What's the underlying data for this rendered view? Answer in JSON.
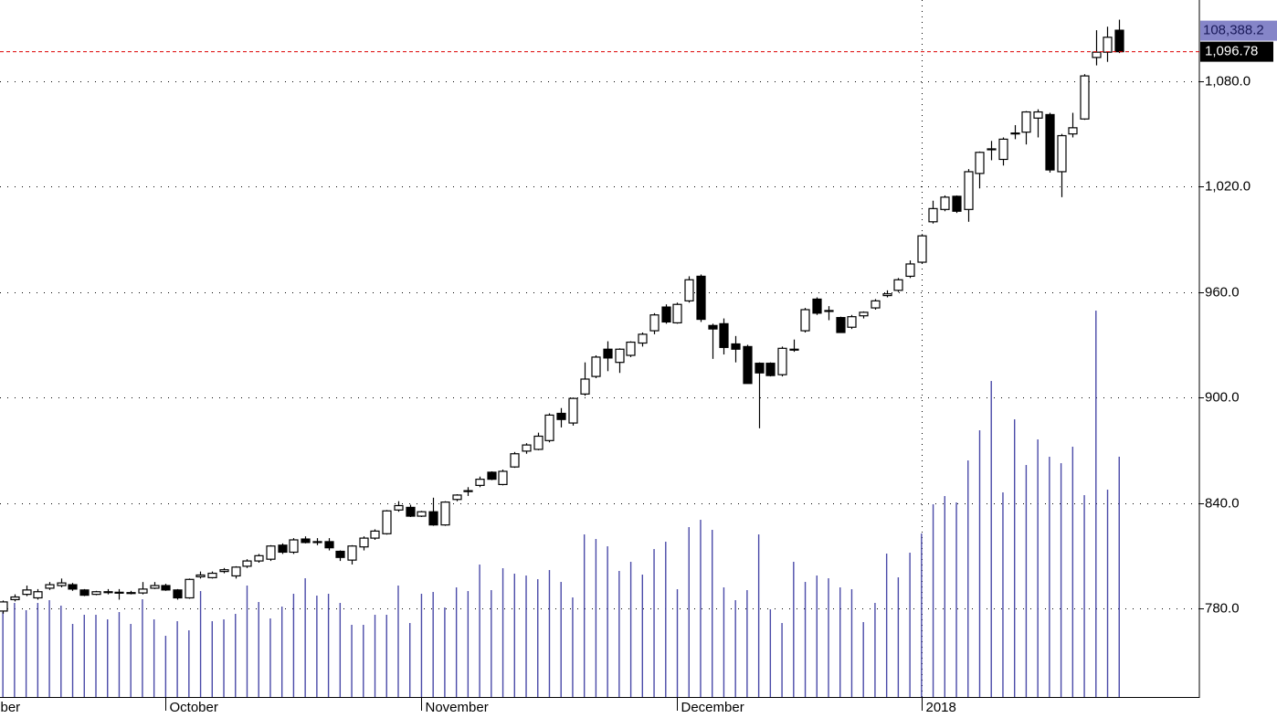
{
  "chart_data": {
    "type": "candlestick",
    "ylim": [
      729.6,
      1126.2
    ],
    "yticks": [
      {
        "value": 780,
        "label": "780.0"
      },
      {
        "value": 840,
        "label": "840.0"
      },
      {
        "value": 900,
        "label": "900.0"
      },
      {
        "value": 960,
        "label": "960.0"
      },
      {
        "value": 1020,
        "label": "1,020.0"
      },
      {
        "value": 1080,
        "label": "1,080.0"
      }
    ],
    "grid": true,
    "xlim": [
      -0.24,
      102.9
    ],
    "xticks": [
      {
        "value": -0.55,
        "label": "ber"
      },
      {
        "value": 14,
        "label": "October"
      },
      {
        "value": 36,
        "label": "November"
      },
      {
        "value": 58,
        "label": "December"
      },
      {
        "value": 79,
        "label": "2018"
      }
    ],
    "open": [
      778.5,
      785,
      788,
      786,
      791.5,
      793,
      793.5,
      790.5,
      788,
      789,
      789,
      788.5,
      788.8,
      791.5,
      793,
      790.5,
      786,
      798,
      797.5,
      801,
      798.5,
      804,
      807,
      808,
      816,
      812,
      819.5,
      818,
      818,
      812.5,
      807.5,
      815,
      820,
      822.5,
      836,
      837.5,
      832.5,
      835,
      827.5,
      842,
      846.5,
      850,
      857.5,
      850.5,
      860.5,
      869.5,
      870.5,
      875.5,
      891,
      885.5,
      902,
      912,
      927.5,
      920,
      924,
      931,
      938,
      951.5,
      942.5,
      955,
      969,
      941,
      942,
      930.5,
      929,
      919.5,
      919.5,
      913,
      927,
      938,
      956,
      949,
      945.5,
      940,
      946.5,
      951,
      958,
      961,
      969,
      977,
      1000,
      1007,
      1014.5,
      1007,
      1027.5,
      1041,
      1035.5,
      1050,
      1051,
      1059,
      1061,
      1028.5,
      1050,
      1058.5,
      1093.5,
      1096.5,
      1109
    ],
    "high": [
      784.5,
      788,
      793,
      791,
      795,
      797,
      794.5,
      791,
      790,
      791,
      791,
      790,
      795,
      795,
      794,
      791,
      797,
      801,
      801,
      803,
      804,
      808,
      811,
      816,
      817,
      820,
      821,
      820,
      820,
      813,
      816,
      821,
      825,
      836,
      841,
      839,
      835.5,
      843,
      841,
      845,
      849,
      855,
      858,
      859,
      869,
      874,
      880,
      891,
      894,
      900,
      920,
      924,
      932,
      928,
      932,
      937,
      948,
      953,
      954,
      969,
      970,
      942,
      945,
      935,
      930,
      920,
      920,
      929,
      933,
      951,
      957,
      952,
      946,
      947,
      949,
      956,
      961,
      968,
      978,
      993,
      1012,
      1015,
      1015,
      1030,
      1040,
      1046,
      1048,
      1055,
      1063,
      1064,
      1062,
      1050,
      1062,
      1084,
      1109,
      1111,
      1115
    ],
    "low": [
      777,
      784,
      787,
      785,
      790.5,
      792,
      790,
      787,
      787.5,
      788,
      785,
      788,
      788,
      791,
      790,
      785,
      785.5,
      797,
      797,
      800,
      797,
      803,
      806,
      807,
      811,
      811,
      817,
      816,
      813,
      807,
      805,
      813,
      819,
      822,
      835,
      832,
      832,
      827,
      827,
      841,
      844,
      849,
      853,
      850,
      860,
      868,
      870,
      874.5,
      883,
      884,
      901,
      911,
      915,
      914,
      923,
      929,
      936,
      942,
      942,
      954,
      943,
      922,
      924.5,
      920,
      908,
      882.5,
      912,
      912,
      926,
      937,
      947,
      944,
      937,
      939,
      945,
      950,
      957,
      960,
      968,
      976,
      999,
      1006,
      1005,
      1000,
      1019,
      1035,
      1032,
      1047,
      1044,
      1048,
      1028,
      1014,
      1048,
      1058,
      1089,
      1091,
      1096
    ],
    "close": [
      783.7,
      786.5,
      790.5,
      789.5,
      793.5,
      794.5,
      791,
      787.5,
      789.5,
      789.5,
      789.2,
      789,
      791,
      793,
      790.5,
      786,
      796.5,
      799,
      800,
      802,
      803.5,
      807,
      810,
      815.5,
      812,
      819,
      817.5,
      817.5,
      814.5,
      809,
      815.5,
      820,
      824,
      835.5,
      838.5,
      832.5,
      835,
      827.5,
      840.5,
      844.5,
      847,
      853.5,
      853.5,
      858,
      868,
      873,
      878,
      890,
      887.5,
      899.5,
      910.5,
      923,
      922.5,
      927.5,
      931.5,
      936,
      947,
      943,
      953,
      967,
      944.5,
      939,
      928.5,
      927.5,
      908,
      914,
      912.5,
      928,
      927.5,
      950,
      948,
      949.5,
      937,
      946,
      948.5,
      955,
      959,
      967,
      976,
      992,
      1007.5,
      1014,
      1006,
      1028.5,
      1039.5,
      1041.5,
      1047,
      1050.5,
      1062.5,
      1062.5,
      1029.5,
      1049,
      1053.5,
      1083,
      1096.5,
      1105,
      1096.78
    ],
    "close_last_label": "1,096.78",
    "up_color": "#ffffff",
    "down_color": "#000000",
    "volume": [
      38316,
      42436,
      39140,
      42436,
      43672,
      41200,
      32960,
      37080,
      37080,
      35020,
      38316,
      32960,
      44084,
      35020,
      27604,
      34196,
      30076,
      47792,
      34196,
      35020,
      37492,
      50264,
      42848,
      35432,
      40788,
      46556,
      53560,
      45732,
      46556,
      42436,
      32548,
      32548,
      37080,
      37080,
      50264,
      33372,
      46556,
      47380,
      40376,
      49440,
      47792,
      59740,
      48204,
      58092,
      55620,
      54796,
      53148,
      57268,
      51912,
      44908,
      73336,
      71276,
      67980,
      56856,
      60976,
      55208,
      66744,
      70040,
      48616,
      76632,
      79928,
      75396,
      49440,
      43672,
      48204,
      73336,
      39552,
      33372,
      60976,
      51912,
      54796,
      53560,
      49440,
      48616,
      33784,
      42436,
      64684,
      53972,
      65096,
      73748,
      86932,
      90640,
      87756,
      106708,
      120304,
      142552,
      92288,
      125248,
      104648,
      116184,
      108356,
      105472,
      112888,
      91052,
      174276,
      93524,
      108388.2
    ],
    "volume_last_label": "108,388.2",
    "volume_color": "#4a4aa8",
    "y2lim": [
      0,
      314400
    ],
    "last_line_color": "#dd0000"
  }
}
